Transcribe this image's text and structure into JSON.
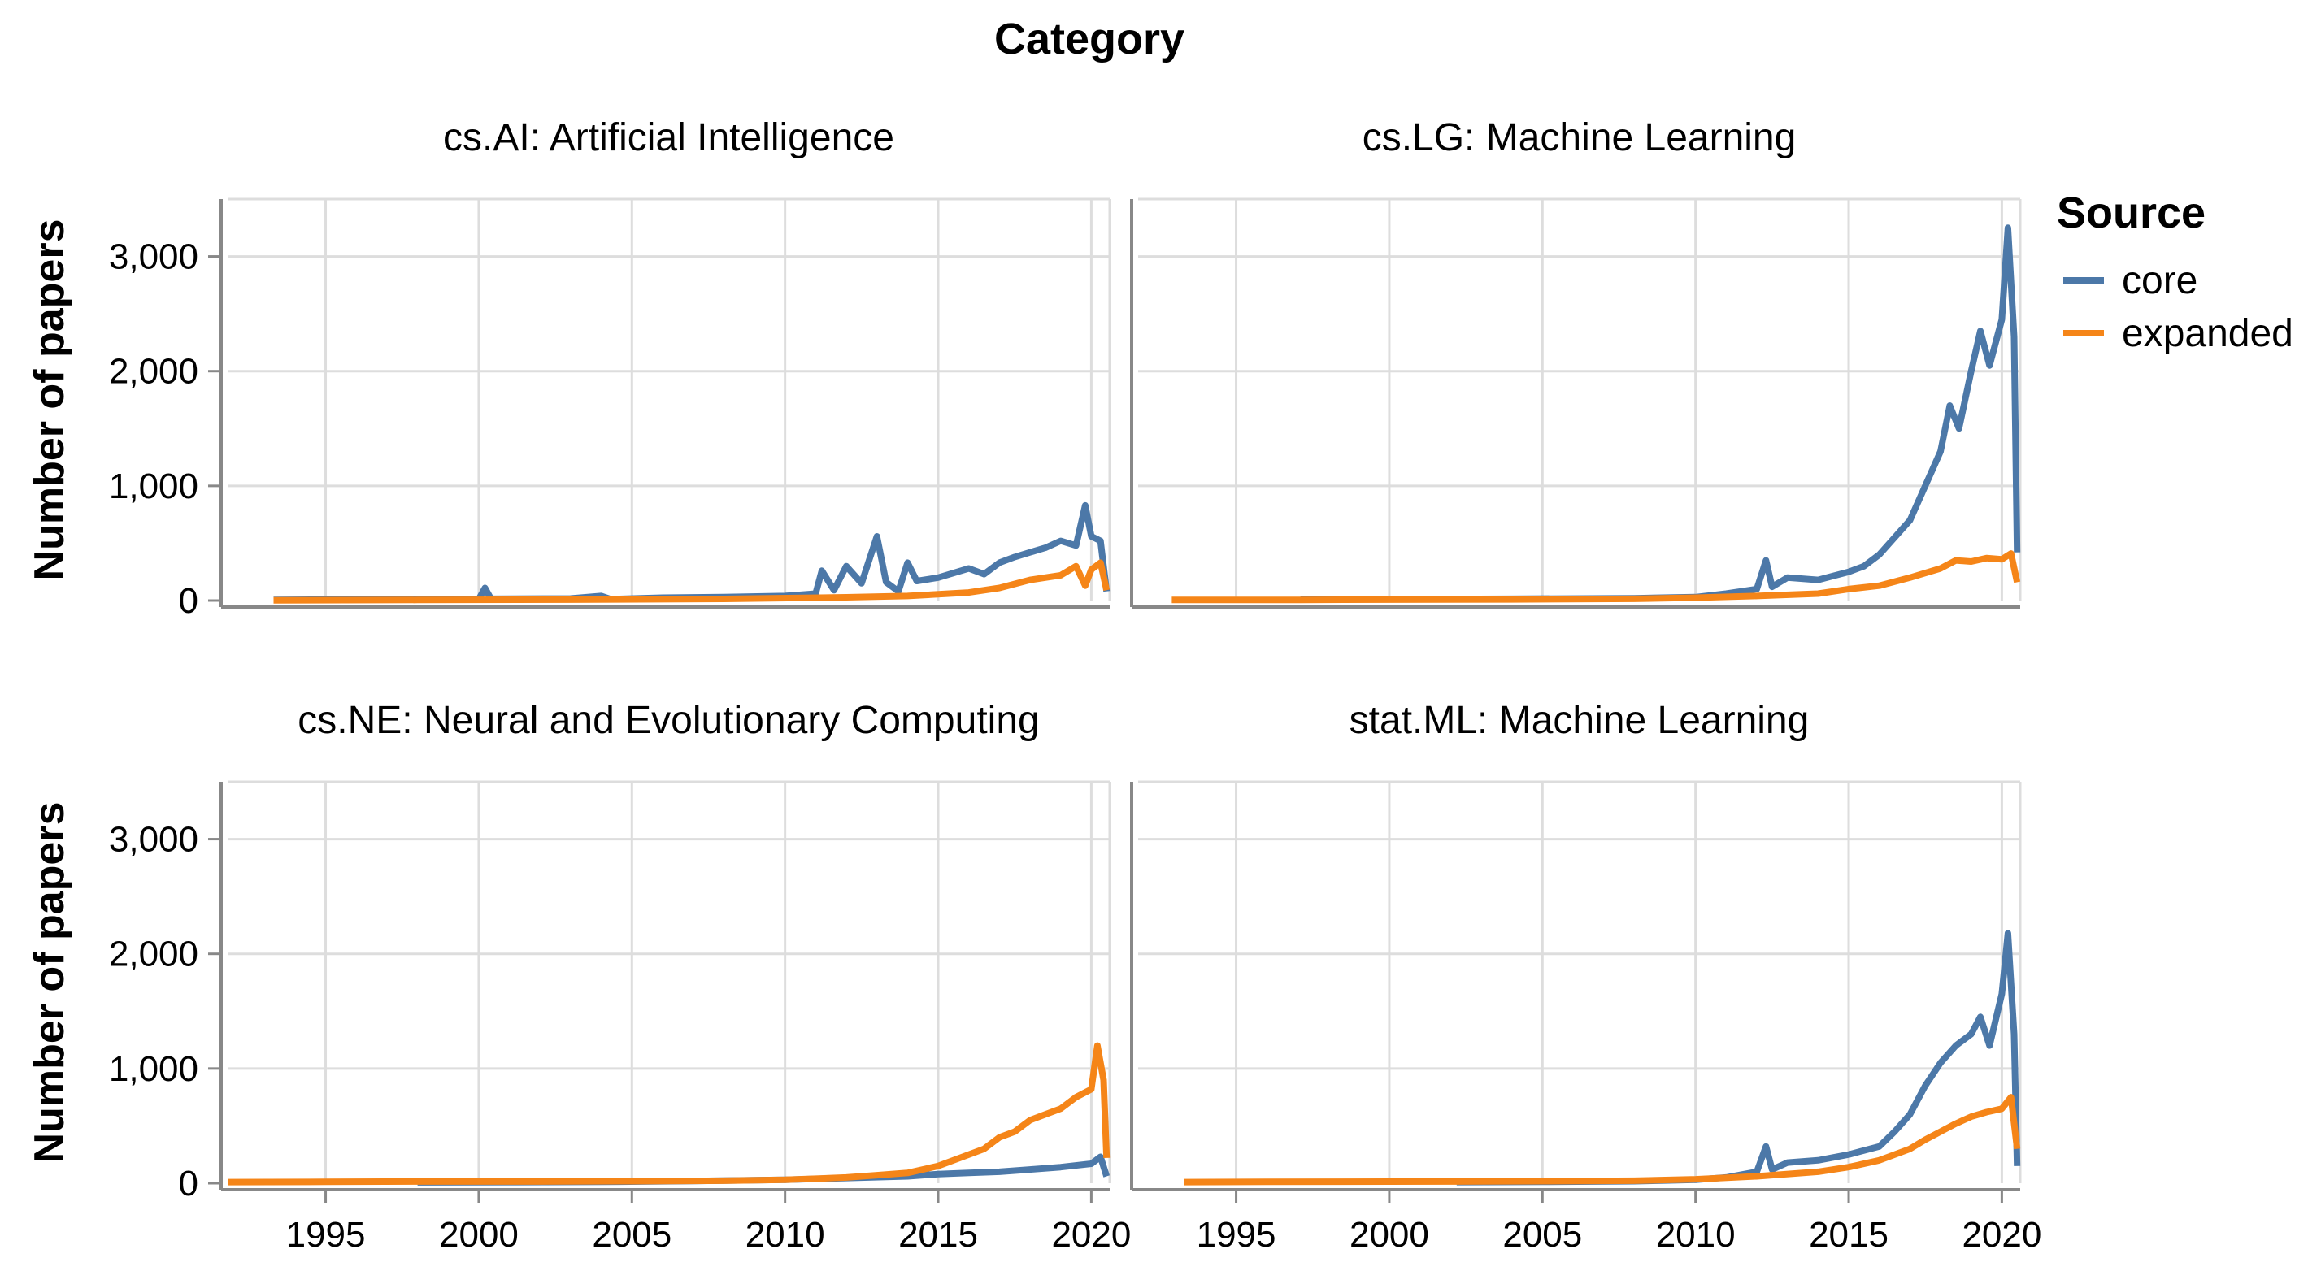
{
  "chart_data": {
    "type": "line",
    "header_title": "Category",
    "ylabel": "Number of papers",
    "ylim": [
      0,
      3500
    ],
    "xlim": [
      1991.8,
      2020.6
    ],
    "x_ticks": [
      "1995",
      "2000",
      "2005",
      "2010",
      "2015",
      "2020"
    ],
    "y_ticks": [
      "0",
      "1,000",
      "2,000",
      "3,000"
    ],
    "grid": true,
    "legend": {
      "title": "Source",
      "position": "right",
      "items": [
        {
          "name": "core",
          "color": "#4c78a8"
        },
        {
          "name": "expanded",
          "color": "#f58518"
        }
      ]
    },
    "facets": [
      {
        "title": "cs.AI: Artificial Intelligence",
        "series": [
          {
            "name": "core",
            "points": [
              [
                1993.3,
                5
              ],
              [
                1995,
                8
              ],
              [
                1998,
                10
              ],
              [
                2000,
                12
              ],
              [
                2000.2,
                110
              ],
              [
                2000.4,
                15
              ],
              [
                2003,
                18
              ],
              [
                2004,
                40
              ],
              [
                2004.3,
                12
              ],
              [
                2006,
                25
              ],
              [
                2008,
                30
              ],
              [
                2010,
                40
              ],
              [
                2011,
                60
              ],
              [
                2011.2,
                260
              ],
              [
                2011.6,
                90
              ],
              [
                2012,
                300
              ],
              [
                2012.5,
                150
              ],
              [
                2013,
                560
              ],
              [
                2013.3,
                160
              ],
              [
                2013.7,
                80
              ],
              [
                2014,
                330
              ],
              [
                2014.3,
                170
              ],
              [
                2015,
                200
              ],
              [
                2016,
                280
              ],
              [
                2016.5,
                230
              ],
              [
                2017,
                330
              ],
              [
                2017.5,
                380
              ],
              [
                2018,
                420
              ],
              [
                2018.5,
                460
              ],
              [
                2019,
                520
              ],
              [
                2019.5,
                480
              ],
              [
                2019.8,
                830
              ],
              [
                2020,
                560
              ],
              [
                2020.3,
                520
              ],
              [
                2020.5,
                80
              ]
            ]
          },
          {
            "name": "expanded",
            "points": [
              [
                1993.3,
                2
              ],
              [
                1998,
                5
              ],
              [
                2003,
                8
              ],
              [
                2008,
                14
              ],
              [
                2012,
                28
              ],
              [
                2014,
                40
              ],
              [
                2016,
                70
              ],
              [
                2017,
                110
              ],
              [
                2018,
                180
              ],
              [
                2019,
                220
              ],
              [
                2019.5,
                300
              ],
              [
                2019.8,
                130
              ],
              [
                2020,
                270
              ],
              [
                2020.3,
                330
              ],
              [
                2020.5,
                90
              ]
            ]
          }
        ]
      },
      {
        "title": "cs.LG: Machine Learning",
        "series": [
          {
            "name": "core",
            "points": [
              [
                1997.1,
                10
              ],
              [
                2000,
                12
              ],
              [
                2004,
                15
              ],
              [
                2008,
                20
              ],
              [
                2010,
                30
              ],
              [
                2011,
                60
              ],
              [
                2012,
                100
              ],
              [
                2012.3,
                350
              ],
              [
                2012.5,
                120
              ],
              [
                2013,
                200
              ],
              [
                2014,
                180
              ],
              [
                2015,
                250
              ],
              [
                2015.5,
                300
              ],
              [
                2016,
                400
              ],
              [
                2016.5,
                550
              ],
              [
                2017,
                700
              ],
              [
                2017.5,
                1000
              ],
              [
                2018,
                1300
              ],
              [
                2018.3,
                1700
              ],
              [
                2018.6,
                1500
              ],
              [
                2019,
                2000
              ],
              [
                2019.3,
                2350
              ],
              [
                2019.6,
                2050
              ],
              [
                2020,
                2450
              ],
              [
                2020.2,
                3250
              ],
              [
                2020.4,
                2300
              ],
              [
                2020.5,
                420
              ]
            ]
          },
          {
            "name": "expanded",
            "points": [
              [
                1992.9,
                5
              ],
              [
                1997.1,
                6
              ],
              [
                2000,
                8
              ],
              [
                2004,
                10
              ],
              [
                2008,
                15
              ],
              [
                2010,
                25
              ],
              [
                2012,
                40
              ],
              [
                2014,
                60
              ],
              [
                2015,
                100
              ],
              [
                2016,
                130
              ],
              [
                2017,
                200
              ],
              [
                2018,
                280
              ],
              [
                2018.5,
                350
              ],
              [
                2019,
                340
              ],
              [
                2019.5,
                370
              ],
              [
                2020,
                360
              ],
              [
                2020.3,
                410
              ],
              [
                2020.5,
                160
              ]
            ]
          }
        ]
      },
      {
        "title": "cs.NE: Neural and Evolutionary Computing",
        "series": [
          {
            "name": "core",
            "points": [
              [
                1998,
                8
              ],
              [
                2001,
                10
              ],
              [
                2004,
                12
              ],
              [
                2007,
                20
              ],
              [
                2010,
                30
              ],
              [
                2012,
                45
              ],
              [
                2014,
                60
              ],
              [
                2015,
                80
              ],
              [
                2016,
                90
              ],
              [
                2017,
                100
              ],
              [
                2018,
                120
              ],
              [
                2019,
                140
              ],
              [
                2020,
                170
              ],
              [
                2020.3,
                230
              ],
              [
                2020.5,
                60
              ]
            ]
          },
          {
            "name": "expanded",
            "points": [
              [
                1991.8,
                10
              ],
              [
                1995,
                12
              ],
              [
                1998,
                15
              ],
              [
                2002,
                15
              ],
              [
                2005,
                18
              ],
              [
                2008,
                22
              ],
              [
                2010,
                30
              ],
              [
                2012,
                50
              ],
              [
                2013,
                70
              ],
              [
                2014,
                90
              ],
              [
                2015,
                150
              ],
              [
                2016,
                250
              ],
              [
                2016.5,
                300
              ],
              [
                2017,
                400
              ],
              [
                2017.5,
                450
              ],
              [
                2018,
                550
              ],
              [
                2018.5,
                600
              ],
              [
                2019,
                650
              ],
              [
                2019.5,
                750
              ],
              [
                2020,
                820
              ],
              [
                2020.2,
                1200
              ],
              [
                2020.4,
                900
              ],
              [
                2020.5,
                220
              ]
            ]
          }
        ]
      },
      {
        "title": "stat.ML: Machine Learning",
        "series": [
          {
            "name": "core",
            "points": [
              [
                2002.2,
                10
              ],
              [
                2005,
                12
              ],
              [
                2008,
                18
              ],
              [
                2010,
                30
              ],
              [
                2011,
                50
              ],
              [
                2012,
                100
              ],
              [
                2012.3,
                320
              ],
              [
                2012.5,
                120
              ],
              [
                2013,
                180
              ],
              [
                2014,
                200
              ],
              [
                2015,
                250
              ],
              [
                2016,
                320
              ],
              [
                2016.5,
                450
              ],
              [
                2017,
                600
              ],
              [
                2017.5,
                850
              ],
              [
                2018,
                1050
              ],
              [
                2018.5,
                1200
              ],
              [
                2019,
                1300
              ],
              [
                2019.3,
                1450
              ],
              [
                2019.6,
                1200
              ],
              [
                2020,
                1650
              ],
              [
                2020.2,
                2180
              ],
              [
                2020.4,
                1300
              ],
              [
                2020.5,
                150
              ]
            ]
          },
          {
            "name": "expanded",
            "points": [
              [
                1993.3,
                10
              ],
              [
                1996,
                12
              ],
              [
                2000,
                14
              ],
              [
                2002.2,
                15
              ],
              [
                2005,
                18
              ],
              [
                2008,
                22
              ],
              [
                2010,
                35
              ],
              [
                2012,
                60
              ],
              [
                2014,
                100
              ],
              [
                2015,
                140
              ],
              [
                2016,
                200
              ],
              [
                2017,
                300
              ],
              [
                2017.5,
                380
              ],
              [
                2018,
                450
              ],
              [
                2018.5,
                520
              ],
              [
                2019,
                580
              ],
              [
                2019.5,
                620
              ],
              [
                2020,
                650
              ],
              [
                2020.3,
                750
              ],
              [
                2020.5,
                300
              ]
            ]
          }
        ]
      }
    ]
  }
}
